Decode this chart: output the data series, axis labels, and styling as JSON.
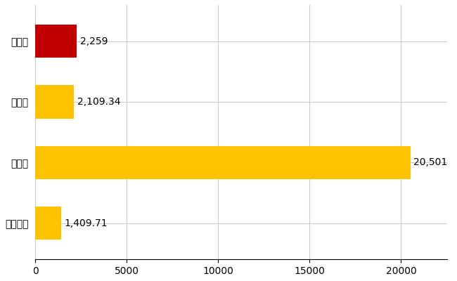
{
  "categories": [
    "柏崎市",
    "県平均",
    "県最大",
    "全国平均"
  ],
  "values": [
    2259,
    2109.34,
    20501,
    1409.71
  ],
  "colors": [
    "#C00000",
    "#FFC200",
    "#FFC200",
    "#FFC200"
  ],
  "labels": [
    "2,259",
    "2,109.34",
    "20,501",
    "1,409.71"
  ],
  "xlim": [
    0,
    22500
  ],
  "xticks": [
    0,
    5000,
    10000,
    15000,
    20000
  ],
  "background_color": "#FFFFFF",
  "grid_color": "#CCCCCC",
  "bar_height": 0.55,
  "label_fontsize": 10,
  "tick_fontsize": 10,
  "font_name": "IPAGothic"
}
